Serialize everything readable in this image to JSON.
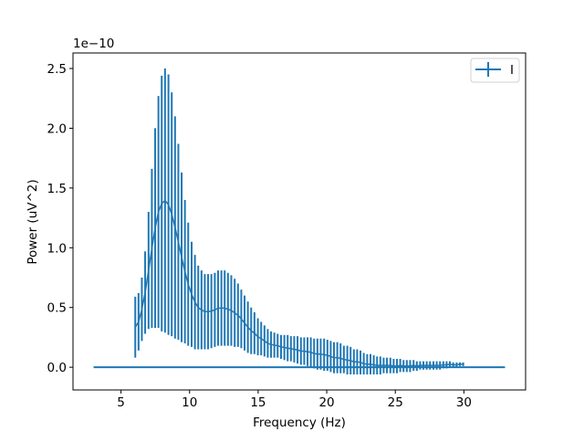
{
  "chart_data": {
    "type": "errorbar",
    "title": "",
    "xlabel": "Frequency (Hz)",
    "ylabel": "Power (uV^2)",
    "y_offset_label": "1e−10",
    "xlim": [
      1.5,
      34.5
    ],
    "ylim": [
      -0.19,
      2.63
    ],
    "xticks": [
      5,
      10,
      15,
      20,
      25,
      30
    ],
    "xtick_labels": [
      "5",
      "10",
      "15",
      "20",
      "25",
      "30"
    ],
    "yticks": [
      0.0,
      0.5,
      1.0,
      1.5,
      2.0,
      2.5
    ],
    "ytick_labels": [
      "0.0",
      "0.5",
      "1.0",
      "1.5",
      "2.0",
      "2.5"
    ],
    "grid": false,
    "legend": {
      "position": "top-right",
      "entries": [
        "I"
      ]
    },
    "color": "#1f77b4",
    "series": [
      {
        "name": "I",
        "x": [
          6.04,
          6.28,
          6.52,
          6.76,
          7.01,
          7.25,
          7.49,
          7.73,
          7.97,
          8.21,
          8.46,
          8.7,
          8.94,
          9.18,
          9.42,
          9.66,
          9.9,
          10.15,
          10.39,
          10.63,
          10.87,
          11.11,
          11.35,
          11.59,
          11.84,
          12.08,
          12.32,
          12.56,
          12.8,
          13.04,
          13.29,
          13.53,
          13.77,
          14.01,
          14.25,
          14.49,
          14.73,
          14.98,
          15.22,
          15.46,
          15.7,
          15.94,
          16.18,
          16.42,
          16.67,
          16.91,
          17.15,
          17.39,
          17.63,
          17.87,
          18.12,
          18.36,
          18.6,
          18.84,
          19.08,
          19.32,
          19.56,
          19.81,
          20.05,
          20.29,
          20.53,
          20.77,
          21.01,
          21.25,
          21.5,
          21.74,
          21.98,
          22.22,
          22.46,
          22.7,
          22.95,
          23.19,
          23.43,
          23.67,
          23.91,
          24.15,
          24.39,
          24.64,
          24.88,
          25.12,
          25.36,
          25.6,
          25.84,
          26.08,
          26.33,
          26.57,
          26.81,
          27.05,
          27.29,
          27.53,
          27.78,
          28.02,
          28.26,
          28.5,
          28.74,
          28.98,
          29.22,
          29.47,
          29.71,
          29.95
        ],
        "y": [
          0.335,
          0.38,
          0.485,
          0.625,
          0.81,
          0.995,
          1.165,
          1.3,
          1.37,
          1.395,
          1.36,
          1.28,
          1.17,
          1.05,
          0.92,
          0.8,
          0.695,
          0.61,
          0.545,
          0.5,
          0.48,
          0.465,
          0.465,
          0.47,
          0.48,
          0.495,
          0.495,
          0.495,
          0.485,
          0.475,
          0.455,
          0.435,
          0.405,
          0.37,
          0.335,
          0.305,
          0.285,
          0.255,
          0.24,
          0.22,
          0.2,
          0.19,
          0.185,
          0.18,
          0.17,
          0.165,
          0.16,
          0.155,
          0.15,
          0.145,
          0.135,
          0.135,
          0.13,
          0.125,
          0.115,
          0.11,
          0.11,
          0.105,
          0.1,
          0.09,
          0.08,
          0.08,
          0.075,
          0.065,
          0.06,
          0.055,
          0.045,
          0.045,
          0.04,
          0.03,
          0.025,
          0.025,
          0.02,
          0.015,
          0.015,
          0.015,
          0.015,
          0.015,
          0.01,
          0.01,
          0.015,
          0.01,
          0.01,
          0.01,
          0.015,
          0.01,
          0.015,
          0.015,
          0.015,
          0.015,
          0.015,
          0.015,
          0.015,
          0.02,
          0.02,
          0.025,
          0.02,
          0.02,
          0.025,
          0.025
        ],
        "yerr": [
          0.255,
          0.24,
          0.265,
          0.345,
          0.49,
          0.665,
          0.835,
          0.97,
          1.07,
          1.105,
          1.09,
          1.02,
          0.93,
          0.82,
          0.71,
          0.6,
          0.515,
          0.44,
          0.395,
          0.35,
          0.33,
          0.315,
          0.315,
          0.31,
          0.31,
          0.315,
          0.315,
          0.315,
          0.305,
          0.295,
          0.285,
          0.265,
          0.245,
          0.23,
          0.215,
          0.195,
          0.175,
          0.155,
          0.14,
          0.13,
          0.12,
          0.11,
          0.105,
          0.1,
          0.1,
          0.105,
          0.11,
          0.105,
          0.11,
          0.115,
          0.115,
          0.115,
          0.12,
          0.125,
          0.125,
          0.13,
          0.13,
          0.135,
          0.13,
          0.13,
          0.13,
          0.13,
          0.125,
          0.115,
          0.12,
          0.115,
          0.105,
          0.105,
          0.1,
          0.09,
          0.085,
          0.085,
          0.08,
          0.075,
          0.075,
          0.065,
          0.065,
          0.065,
          0.06,
          0.06,
          0.055,
          0.05,
          0.05,
          0.05,
          0.045,
          0.04,
          0.035,
          0.035,
          0.035,
          0.035,
          0.035,
          0.035,
          0.035,
          0.03,
          0.03,
          0.025,
          0.02,
          0.02,
          0.015,
          0.015
        ]
      },
      {
        "x": [
          3,
          33
        ],
        "y": [
          0,
          0
        ]
      }
    ]
  }
}
